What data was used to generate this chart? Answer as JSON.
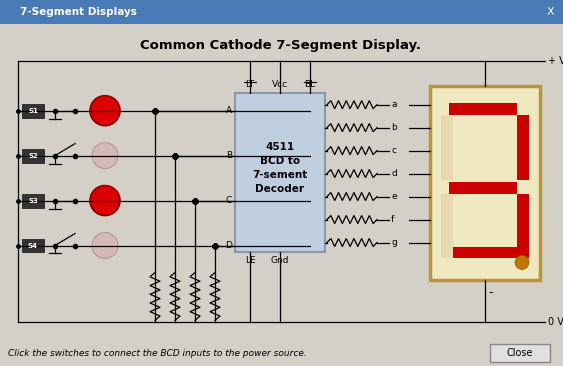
{
  "title": "Common Cathode 7-Segment Display.",
  "window_title": "7-Segment Displays",
  "footer_text": "Click the switches to connect the BCD inputs to the power source.",
  "bg_color": "#d4d0c8",
  "circuit_bg": "#f2f2f2",
  "chip_color": "#c0cfe0",
  "chip_border": "#8899aa",
  "display_bg": "#f0e8c0",
  "display_border": "#b8943c",
  "seg_on_color": "#cc0000",
  "seg_off_color": "#e8d8b0",
  "switch_labels": [
    "S1",
    "S2",
    "S3",
    "S4"
  ],
  "switch_active": [
    true,
    false,
    true,
    false
  ],
  "line_color": "#000000",
  "vcc_label": "+ Vs",
  "gnd_label": "0 V",
  "active_led_color": "#dd0000",
  "inactive_led_color": "#d8b0b0",
  "segment_labels": [
    "a",
    "b",
    "c",
    "d",
    "e",
    "f",
    "g"
  ],
  "segments_on": [
    true,
    true,
    true,
    true,
    false,
    false,
    true
  ],
  "titlebar_color": "#4a7ab5",
  "titlebar_text_color": "#ffffff"
}
